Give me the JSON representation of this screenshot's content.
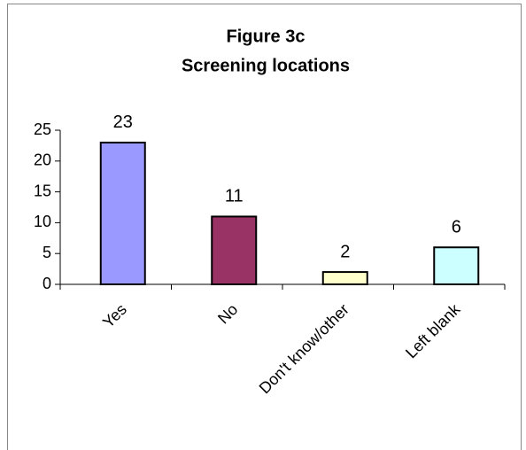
{
  "chart_data": {
    "type": "bar",
    "title": "Figure 3c",
    "subtitle": "Screening locations",
    "categories": [
      "Yes",
      "No",
      "Don't know/other",
      "Left blank"
    ],
    "values": [
      23,
      11,
      2,
      6
    ],
    "colors": [
      "#9999ff",
      "#993366",
      "#ffffcc",
      "#ccffff"
    ],
    "ylim": [
      0,
      25
    ],
    "yticks": [
      0,
      5,
      10,
      15,
      20,
      25
    ],
    "grid": false
  }
}
